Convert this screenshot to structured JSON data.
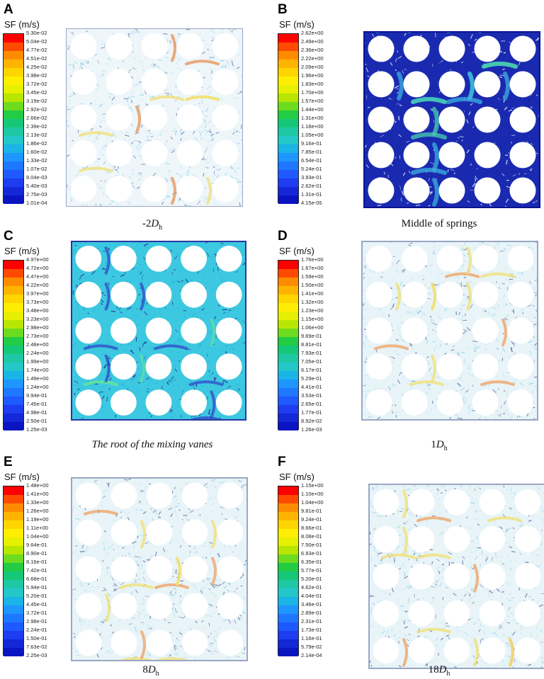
{
  "figure": {
    "sf_label": "SF (m/s)",
    "panels": [
      {
        "letter": "A",
        "caption_prefix": "-2",
        "caption_var": "D",
        "caption_sub": "h",
        "caption_italic": "",
        "ticks": [
          "5.30e-02",
          "5.04e-02",
          "4.77e-02",
          "4.51e-02",
          "4.25e-02",
          "3.98e-02",
          "3.72e-02",
          "3.45e-02",
          "3.19e-02",
          "2.92e-02",
          "2.66e-02",
          "2.39e-02",
          "2.13e-02",
          "1.86e-02",
          "1.60e-02",
          "1.33e-02",
          "1.07e-02",
          "8.04e-03",
          "5.40e-03",
          "2.75e-03",
          "1.01e-04"
        ],
        "style": "light"
      },
      {
        "letter": "B",
        "caption_prefix": "Middle of springs",
        "caption_var": "",
        "caption_sub": "",
        "caption_italic": "",
        "ticks": [
          "2.62e+00",
          "2.49e+00",
          "2.36e+00",
          "2.22e+00",
          "2.09e+00",
          "1.96e+00",
          "1.83e+00",
          "1.70e+00",
          "1.57e+00",
          "1.44e+00",
          "1.31e+00",
          "1.18e+00",
          "1.05e+00",
          "9.16e-01",
          "7.85e-01",
          "6.54e-01",
          "5.24e-01",
          "3.93e-01",
          "2.62e-01",
          "1.31e-01",
          "4.15e-05"
        ],
        "style": "dark"
      },
      {
        "letter": "C",
        "caption_prefix": "",
        "caption_var": "",
        "caption_sub": "",
        "caption_italic": "The root of the mixing vanes",
        "ticks": [
          "4.97e+00",
          "4.72e+00",
          "4.47e+00",
          "4.22e+00",
          "3.97e+00",
          "3.73e+00",
          "3.48e+00",
          "3.23e+00",
          "2.98e+00",
          "2.73e+00",
          "2.48e+00",
          "2.24e+00",
          "1.99e+00",
          "1.74e+00",
          "1.49e+00",
          "1.24e+00",
          "9.94e-01",
          "7.45e-01",
          "4.98e-01",
          "2.50e-01",
          "1.25e-03"
        ],
        "style": "cyan"
      },
      {
        "letter": "D",
        "caption_prefix": "1",
        "caption_var": "D",
        "caption_sub": "h",
        "caption_italic": "",
        "ticks": [
          "1.76e+00",
          "1.67e+00",
          "1.59e+00",
          "1.50e+00",
          "1.41e+00",
          "1.32e+00",
          "1.23e+00",
          "1.15e+00",
          "1.06e+00",
          "9.69e-01",
          "8.81e-01",
          "7.93e-01",
          "7.05e-01",
          "6.17e-01",
          "5.29e-01",
          "4.41e-01",
          "3.53e-01",
          "2.65e-01",
          "1.77e-01",
          "8.92e-02",
          "1.26e-03"
        ],
        "style": "swirl"
      },
      {
        "letter": "E",
        "caption_prefix": "8",
        "caption_var": "D",
        "caption_sub": "h",
        "caption_italic": "",
        "ticks": [
          "1.48e+00",
          "1.41e+00",
          "1.33e+00",
          "1.26e+00",
          "1.19e+00",
          "1.11e+00",
          "1.04e+00",
          "9.64e-01",
          "8.90e-01",
          "8.16e-01",
          "7.42e-01",
          "6.68e-01",
          "5.94e-01",
          "5.20e-01",
          "4.45e-01",
          "3.72e-01",
          "2.98e-01",
          "2.24e-01",
          "1.50e-01",
          "7.63e-02",
          "2.25e-03"
        ],
        "style": "swirl"
      },
      {
        "letter": "F",
        "caption_prefix": "18",
        "caption_var": "D",
        "caption_sub": "h",
        "caption_italic": "",
        "ticks": [
          "1.15e+00",
          "1.10e+00",
          "1.04e+00",
          "9.81e-01",
          "9.24e-01",
          "8.66e-01",
          "8.08e-01",
          "7.50e-01",
          "6.93e-01",
          "6.35e-01",
          "5.77e-01",
          "5.20e-01",
          "4.62e-01",
          "4.04e-01",
          "3.46e-01",
          "2.89e-01",
          "2.31e-01",
          "1.73e-01",
          "1.16e-01",
          "5.79e-02",
          "2.14e-04"
        ],
        "style": "swirl"
      }
    ],
    "colorbar_colors": [
      "#ff0000",
      "#ff4a00",
      "#ff8c00",
      "#ffb400",
      "#ffd500",
      "#ffee00",
      "#e6f000",
      "#b8e600",
      "#6edc1e",
      "#22cc44",
      "#14c878",
      "#1ec8a4",
      "#22c8c8",
      "#1ab4e6",
      "#1e96ff",
      "#1e78ff",
      "#1e5aff",
      "#1e3cf0",
      "#1428d8",
      "#0a14c0"
    ]
  }
}
